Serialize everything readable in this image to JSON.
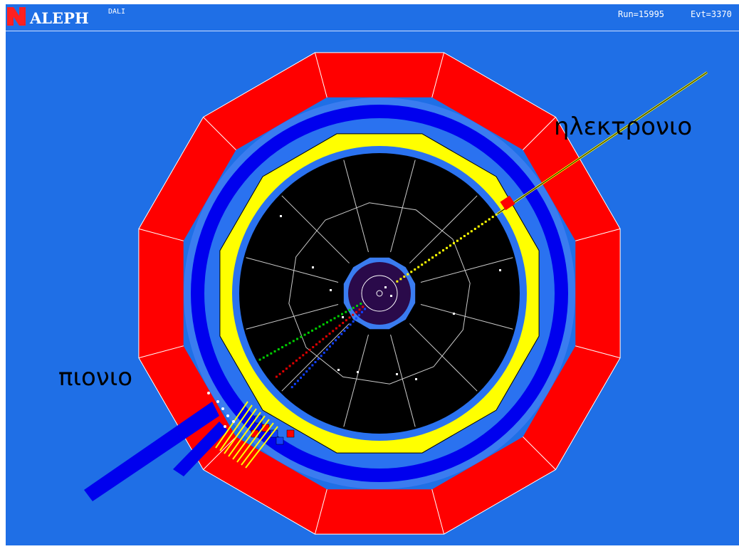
{
  "header": {
    "title": "ALEPH",
    "subtitle": "DALI",
    "run": "Run=15995",
    "event": "Evt=3370"
  },
  "annotations": {
    "electron": "ηλεκτρονιο",
    "pion": "πιονιο"
  },
  "colors": {
    "background": "#1f6fe6",
    "hcal": "#ff0000",
    "ecal": "#ffff00",
    "coil": "#0000ee",
    "tracker": "#000000",
    "vertex": "#2a0a4a",
    "electron_track": "#ffff00",
    "pion_track": "#00cc00",
    "secondary_track_red": "#dd0000",
    "secondary_track_blue": "#1040ff"
  }
}
